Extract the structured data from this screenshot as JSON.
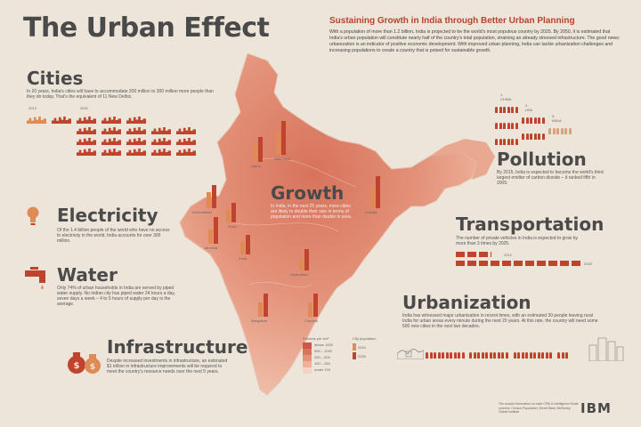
{
  "title": "The Urban Effect",
  "intro": {
    "title": "Sustaining Growth in India through Better Urban Planning",
    "text": "With a population of more than 1.2 billion, India is projected to be the world's most populous country by 2025. By 2050, it is estimated that India's urban population will constitute nearly half of the country's total population, straining an already stressed infrastructure. The good news: urbanization is an indicator of positive economic development. With improved urban planning, India can tackle urbanization challenges and increasing populations to create a country that is poised for sustainable growth."
  },
  "cities": {
    "heading": "Cities",
    "text": "In 20 years, India's cities will have to accommodate 200 million to 300 million more people than they do today. That's the equivalent of 11 New Delhis.",
    "year_a": "2012",
    "year_b": "2032"
  },
  "electricity": {
    "heading": "Electricity",
    "text": "Of the 1.4 billion people of the world who have no access to electricity in the world, India accounts for over 300 million."
  },
  "water": {
    "heading": "Water",
    "text": "Only 74% of urban households in India are served by piped water supply. No Indian city has piped water 24 hours a day, seven days a week – 4 to 5 hours of supply per day is the average."
  },
  "infrastructure": {
    "heading": "Infrastructure",
    "text": "Despite increased investments in infrastructure, an estimated $1 trillion in infrastructure improvements will be required to meet the country's resource needs over the next 5 years."
  },
  "growth": {
    "heading": "Growth",
    "text": "In India, in the next 25 years, more cities are likely to double their size in terms of population and more than double in area."
  },
  "map_cities": [
    "Jaipur",
    "New Delhi",
    "Ahmedabad",
    "Surat",
    "Kolkata",
    "Mumbai",
    "Pune",
    "Hyderabad",
    "Bangalore",
    "Chennai"
  ],
  "map_legend": {
    "density_title": "Persons per km²",
    "density_items": [
      "above 1000",
      "500 – 1000",
      "250 – 500",
      "100 – 250",
      "under 100"
    ],
    "pop_title": "City population",
    "pop_items": [
      "2010",
      "2025"
    ]
  },
  "pollution": {
    "ranks": [
      "1. CHINA",
      "2. USA",
      "3. INDIA"
    ],
    "heading": "Pollution",
    "text": "By 2015, India is expected to become the world's third largest emitter of carbon dioxide – it ranked fifth in 2005."
  },
  "transportation": {
    "heading": "Transportation",
    "text": "The number of private vehicles in India is expected to grow by more than 3 times by 2025.",
    "year_a": "2012",
    "year_b": "2025"
  },
  "urbanization": {
    "heading": "Urbanization",
    "text": "India has witnessed major urbanization in recent times, with an estimated 30 people leaving rural India for urban areas every minute during the next 20 years. At this rate, the country will need some 500 new cities in the next two decades."
  },
  "footer_note": "The source information on India CPM & Intelligence Scale sources: Census Population, World Bank, McKinsey Global Institute",
  "brand": "IBM",
  "colors": {
    "accent": "#c0432d",
    "orange": "#e08a55",
    "map_light": "#f2c6b0",
    "map_dark": "#c85a45",
    "background": "#ede5da"
  }
}
